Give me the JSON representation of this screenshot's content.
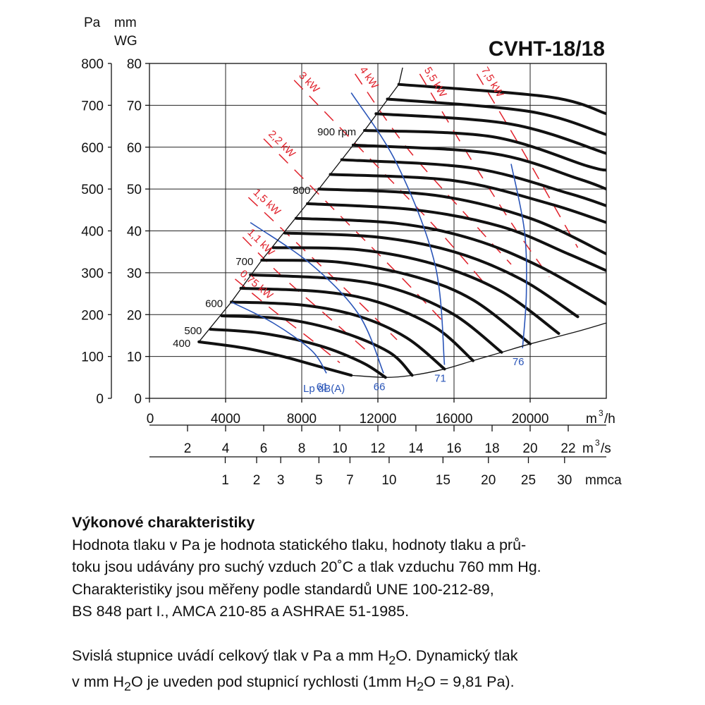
{
  "chart_data": {
    "type": "line",
    "title": "CVHT-18/18",
    "y_units": {
      "left": "Pa",
      "right_line1": "mm",
      "right_line2": "WG"
    },
    "y_pa_ticks": [
      "0",
      "100",
      "200",
      "300",
      "400",
      "500",
      "600",
      "700",
      "800"
    ],
    "y_mmwg_ticks": [
      "0",
      "10",
      "20",
      "30",
      "40",
      "50",
      "60",
      "70",
      "80"
    ],
    "ylim_pa": [
      0,
      800
    ],
    "x_flow_m3h": {
      "unit": "m",
      "unit_sup": "3",
      "unit_tail": "/h",
      "ticks": [
        "0",
        "4000",
        "8000",
        "12000",
        "16000",
        "20000"
      ],
      "range": [
        0,
        24000
      ]
    },
    "x_flow_m3s": {
      "unit": "m",
      "unit_sup": "3",
      "unit_tail": "/s",
      "ticks": [
        "2",
        "4",
        "6",
        "8",
        "10",
        "12",
        "14",
        "16",
        "18",
        "20",
        "22"
      ]
    },
    "x_dynamic_mmca": {
      "unit": "mmca",
      "ticks": [
        "1",
        "2",
        "3",
        "5",
        "7",
        "10",
        "15",
        "20",
        "25",
        "30"
      ]
    },
    "grid": true,
    "rpm_curves": [
      {
        "label": "400",
        "points": [
          [
            2600,
            135
          ],
          [
            5000,
            120
          ],
          [
            7000,
            100
          ],
          [
            9000,
            75
          ],
          [
            10600,
            55
          ]
        ]
      },
      {
        "label": "500",
        "points": [
          [
            3200,
            165
          ],
          [
            6000,
            155
          ],
          [
            9000,
            125
          ],
          [
            11200,
            85
          ],
          [
            12400,
            50
          ]
        ]
      },
      {
        "label": "",
        "points": [
          [
            3800,
            197
          ],
          [
            7000,
            190
          ],
          [
            10000,
            160
          ],
          [
            12600,
            110
          ],
          [
            13800,
            55
          ]
        ]
      },
      {
        "label": "600",
        "points": [
          [
            4300,
            230
          ],
          [
            8000,
            223
          ],
          [
            11000,
            196
          ],
          [
            13500,
            145
          ],
          [
            15500,
            70
          ]
        ]
      },
      {
        "label": "",
        "points": [
          [
            4800,
            263
          ],
          [
            9000,
            255
          ],
          [
            12000,
            230
          ],
          [
            15000,
            170
          ],
          [
            17000,
            90
          ]
        ]
      },
      {
        "label": "",
        "points": [
          [
            5300,
            295
          ],
          [
            10000,
            285
          ],
          [
            13000,
            260
          ],
          [
            16000,
            200
          ],
          [
            18500,
            110
          ]
        ]
      },
      {
        "label": "700",
        "points": [
          [
            5900,
            330
          ],
          [
            10000,
            325
          ],
          [
            14000,
            290
          ],
          [
            17000,
            235
          ],
          [
            20000,
            130
          ]
        ]
      },
      {
        "label": "",
        "points": [
          [
            6500,
            360
          ],
          [
            11000,
            355
          ],
          [
            15000,
            320
          ],
          [
            18500,
            255
          ],
          [
            21500,
            155
          ]
        ]
      },
      {
        "label": "",
        "points": [
          [
            7100,
            395
          ],
          [
            12000,
            385
          ],
          [
            16000,
            350
          ],
          [
            19500,
            285
          ],
          [
            22500,
            195
          ]
        ]
      },
      {
        "label": "",
        "points": [
          [
            7700,
            430
          ],
          [
            13000,
            418
          ],
          [
            17000,
            380
          ],
          [
            20500,
            315
          ],
          [
            24000,
            225
          ]
        ]
      },
      {
        "label": "",
        "points": [
          [
            8300,
            465
          ],
          [
            14000,
            450
          ],
          [
            18500,
            410
          ],
          [
            22000,
            345
          ],
          [
            24000,
            305
          ]
        ]
      },
      {
        "label": "800",
        "points": [
          [
            8900,
            500
          ],
          [
            15000,
            485
          ],
          [
            20000,
            430
          ],
          [
            24000,
            345
          ]
        ]
      },
      {
        "label": "",
        "points": [
          [
            9500,
            535
          ],
          [
            16000,
            520
          ],
          [
            21000,
            465
          ],
          [
            24000,
            420
          ]
        ]
      },
      {
        "label": "",
        "points": [
          [
            10100,
            570
          ],
          [
            17000,
            550
          ],
          [
            22000,
            490
          ],
          [
            24000,
            460
          ]
        ]
      },
      {
        "label": "",
        "points": [
          [
            10700,
            605
          ],
          [
            18000,
            585
          ],
          [
            22500,
            525
          ],
          [
            24000,
            500
          ]
        ]
      },
      {
        "label": "900 rpm",
        "points": [
          [
            11300,
            640
          ],
          [
            18000,
            625
          ],
          [
            23000,
            555
          ],
          [
            24000,
            545
          ]
        ]
      },
      {
        "label": "",
        "points": [
          [
            11900,
            680
          ],
          [
            19000,
            655
          ],
          [
            24000,
            585
          ]
        ]
      },
      {
        "label": "",
        "points": [
          [
            12500,
            715
          ],
          [
            20000,
            685
          ],
          [
            24000,
            630
          ]
        ]
      },
      {
        "label": "",
        "points": [
          [
            13100,
            750
          ],
          [
            21000,
            720
          ],
          [
            24000,
            680
          ]
        ]
      }
    ],
    "power_lines": [
      {
        "label": "0,75 kW",
        "points": [
          [
            4500,
            285
          ],
          [
            6500,
            210
          ],
          [
            8500,
            140
          ],
          [
            10000,
            85
          ]
        ]
      },
      {
        "label": "1,1 kW",
        "points": [
          [
            4900,
            385
          ],
          [
            7000,
            290
          ],
          [
            9500,
            190
          ],
          [
            11500,
            110
          ]
        ]
      },
      {
        "label": "1,5 kW",
        "points": [
          [
            5200,
            480
          ],
          [
            8000,
            360
          ],
          [
            11000,
            230
          ],
          [
            13000,
            140
          ]
        ]
      },
      {
        "label": "2,2 kW",
        "points": [
          [
            6000,
            620
          ],
          [
            9500,
            460
          ],
          [
            13000,
            300
          ],
          [
            15500,
            180
          ]
        ]
      },
      {
        "label": "3 kW",
        "points": [
          [
            7600,
            760
          ],
          [
            11000,
            600
          ],
          [
            15000,
            410
          ],
          [
            17500,
            280
          ]
        ]
      },
      {
        "label": "4 kW",
        "points": [
          [
            10800,
            775
          ],
          [
            13500,
            600
          ],
          [
            17000,
            420
          ],
          [
            19000,
            320
          ]
        ]
      },
      {
        "label": "5,5 kW",
        "points": [
          [
            14200,
            775
          ],
          [
            16500,
            600
          ],
          [
            19000,
            420
          ],
          [
            21000,
            290
          ]
        ]
      },
      {
        "label": "7,5 kW",
        "points": [
          [
            17200,
            775
          ],
          [
            19500,
            600
          ],
          [
            21500,
            440
          ],
          [
            22500,
            360
          ]
        ]
      }
    ],
    "sound_curves": [
      {
        "label": "61",
        "points": [
          [
            4300,
            230
          ],
          [
            6500,
            180
          ],
          [
            8500,
            115
          ],
          [
            9300,
            60
          ]
        ]
      },
      {
        "label": "66",
        "points": [
          [
            5300,
            420
          ],
          [
            8500,
            320
          ],
          [
            11000,
            200
          ],
          [
            12300,
            60
          ]
        ]
      },
      {
        "label": "71",
        "points": [
          [
            10600,
            730
          ],
          [
            13000,
            560
          ],
          [
            15000,
            320
          ],
          [
            15500,
            80
          ]
        ]
      },
      {
        "label": "76",
        "points": [
          [
            19000,
            560
          ],
          [
            19700,
            400
          ],
          [
            19800,
            250
          ],
          [
            19600,
            120
          ]
        ]
      }
    ],
    "sound_unit_label": "Lp dB(A)",
    "operating_boundary": {
      "left": [
        [
          2600,
          135
        ],
        [
          4300,
          230
        ],
        [
          5900,
          330
        ],
        [
          8900,
          500
        ],
        [
          11300,
          640
        ],
        [
          13100,
          750
        ],
        [
          13300,
          790
        ]
      ],
      "bottom": [
        [
          10600,
          55
        ],
        [
          12400,
          50
        ],
        [
          13800,
          55
        ],
        [
          15500,
          70
        ],
        [
          17000,
          90
        ],
        [
          18500,
          110
        ],
        [
          20000,
          130
        ],
        [
          22500,
          160
        ],
        [
          24000,
          180
        ]
      ]
    }
  },
  "description": {
    "heading": "Výkonové charakteristiky",
    "p1_l1": "Hodnota tlaku v Pa je hodnota statického tlaku, hodnoty tlaku a prů-",
    "p1_l2": "toku jsou udávány pro suchý vzduch 20˚C a tlak vzduchu 760 mm Hg.",
    "p1_l3": "Charakteristiky jsou měřeny podle standardů UNE 100-212-89,",
    "p1_l4": "BS 848 part I., AMCA 210-85 a ASHRAE 51-1985.",
    "p2_l1_a": "Svislá stupnice uvádí celkový tlak v Pa a mm H",
    "p2_l1_sub": "2",
    "p2_l1_b": "O. Dynamický tlak",
    "p2_l2_a": "v mm H",
    "p2_l2_sub": "2",
    "p2_l2_b": "O je uveden pod stupnicí rychlosti (1mm H",
    "p2_l2_sub2": "2",
    "p2_l2_c": "O = 9,81 Pa)."
  }
}
